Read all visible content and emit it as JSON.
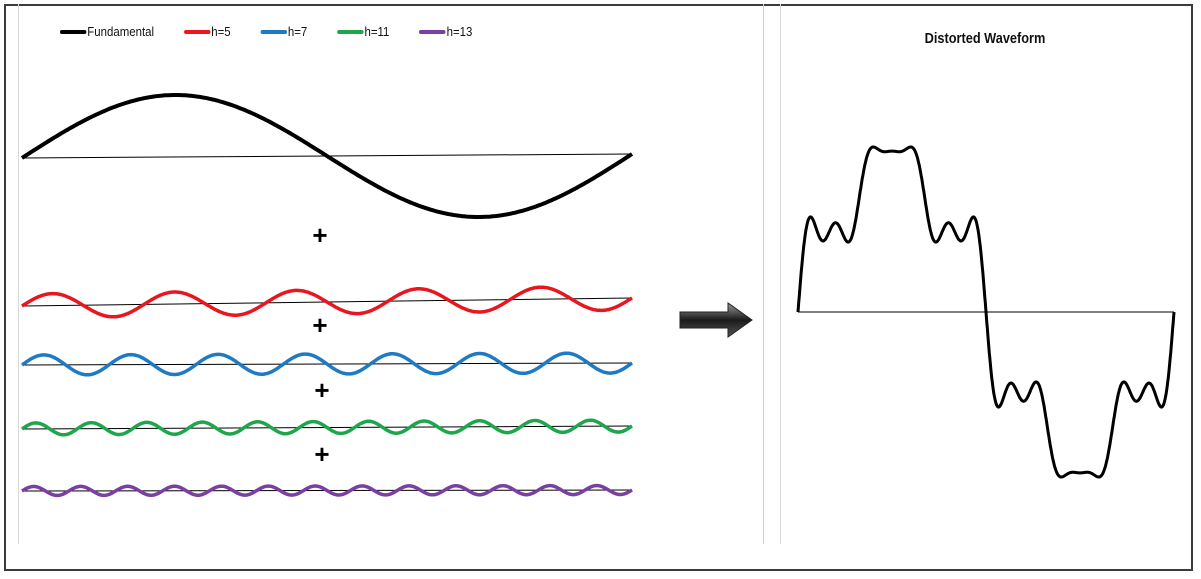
{
  "legend": [
    {
      "label": "Fundamental",
      "color": "#000000"
    },
    {
      "label": "h=5",
      "color": "#e8171f"
    },
    {
      "label": "h=7",
      "color": "#1f7ac4"
    },
    {
      "label": "h=11",
      "color": "#1ea64c"
    },
    {
      "label": "h=13",
      "color": "#7a3fa0"
    }
  ],
  "plus_sign": "+",
  "result": {
    "title": "Distorted Waveform",
    "harmonics_included": [
      1,
      5,
      7,
      11,
      13
    ],
    "amplitude_ratios": [
      1,
      0.2,
      0.14,
      0.09,
      0.077
    ]
  },
  "icons": [
    "right-arrow-icon"
  ]
}
